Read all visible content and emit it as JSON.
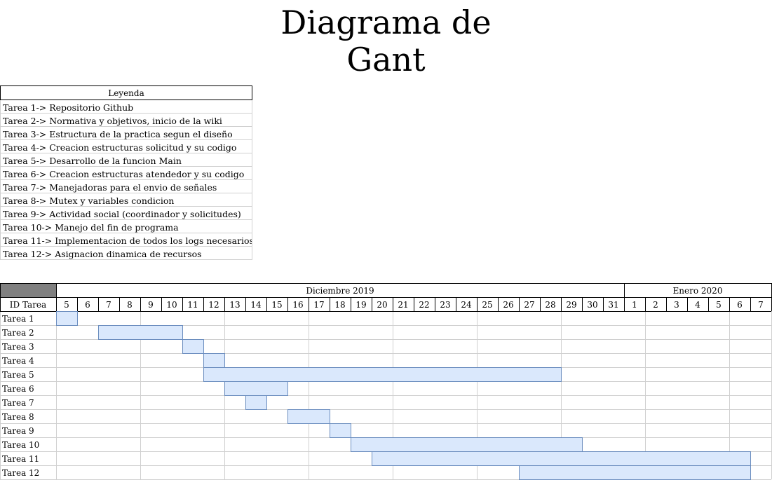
{
  "title": "Diagrama de\nGant",
  "legend": {
    "header": "Leyenda",
    "items": [
      "Tarea 1-> Repositorio Github",
      "Tarea 2-> Normativa y objetivos, inicio de la wiki",
      "Tarea 3-> Estructura de la practica segun el diseño",
      "Tarea 4-> Creacion estructuras solicitud y su codigo",
      "Tarea 5-> Desarrollo de la funcion Main",
      "Tarea 6-> Creacion estructuras atendedor y su codigo",
      "Tarea 7-> Manejadoras para el envio de señales",
      "Tarea 8-> Mutex y variables condicion",
      "Tarea 9-> Actividad social (coordinador y solicitudes)",
      "Tarea 10-> Manejo del fin de programa",
      "Tarea 11-> Implementacion de todos los logs necesarios",
      "Tarea 12-> Asignacion dinamica de recursos"
    ]
  },
  "colors": {
    "bar_fill": "#dae8fc",
    "bar_stroke": "#6c8ebf",
    "corner": "#808080",
    "grid": "#d0d0d0"
  },
  "chart_data": {
    "type": "gantt",
    "id_header": "ID Tarea",
    "months": [
      {
        "label": "Diciembre 2019",
        "days": 27
      },
      {
        "label": "Enero 2020",
        "days": 7
      }
    ],
    "days": [
      "5",
      "6",
      "7",
      "8",
      "9",
      "10",
      "11",
      "12",
      "13",
      "14",
      "15",
      "16",
      "17",
      "18",
      "19",
      "20",
      "21",
      "22",
      "23",
      "24",
      "25",
      "26",
      "27",
      "28",
      "29",
      "30",
      "31",
      "1",
      "2",
      "3",
      "4",
      "5",
      "6",
      "7"
    ],
    "tasks": [
      {
        "name": "Tarea 1",
        "start": "2019-12-05",
        "end": "2019-12-05"
      },
      {
        "name": "Tarea 2",
        "start": "2019-12-07",
        "end": "2019-12-10"
      },
      {
        "name": "Tarea 3",
        "start": "2019-12-11",
        "end": "2019-12-11"
      },
      {
        "name": "Tarea 4",
        "start": "2019-12-12",
        "end": "2019-12-12"
      },
      {
        "name": "Tarea 5",
        "start": "2019-12-12",
        "end": "2019-12-28"
      },
      {
        "name": "Tarea 6",
        "start": "2019-12-13",
        "end": "2019-12-15"
      },
      {
        "name": "Tarea 7",
        "start": "2019-12-14",
        "end": "2019-12-14"
      },
      {
        "name": "Tarea 8",
        "start": "2019-12-16",
        "end": "2019-12-17"
      },
      {
        "name": "Tarea 9",
        "start": "2019-12-18",
        "end": "2019-12-18"
      },
      {
        "name": "Tarea 10",
        "start": "2019-12-19",
        "end": "2019-12-29"
      },
      {
        "name": "Tarea 11",
        "start": "2019-12-20",
        "end": "2020-01-06"
      },
      {
        "name": "Tarea 12",
        "start": "2019-12-27",
        "end": "2020-01-06"
      }
    ]
  }
}
